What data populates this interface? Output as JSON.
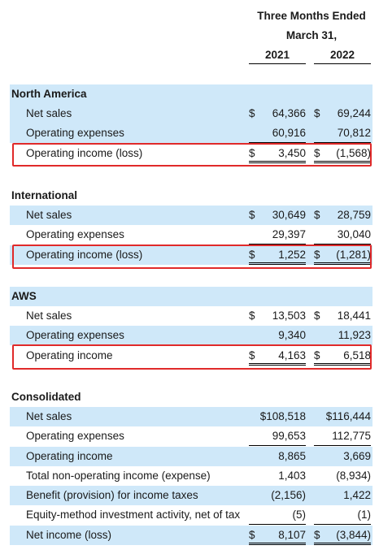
{
  "header": {
    "title_line1": "Three Months Ended",
    "title_line2": "March 31,",
    "years": [
      "2021",
      "2022"
    ]
  },
  "sections": {
    "north_america": {
      "title": "North America",
      "rows": [
        {
          "label": "Net sales",
          "cur1": "$",
          "v1": "64,366",
          "cur2": "$",
          "v2": "69,244"
        },
        {
          "label": "Operating expenses",
          "cur1": "",
          "v1": "60,916",
          "cur2": "",
          "v2": "70,812"
        },
        {
          "label": "Operating income (loss)",
          "cur1": "$",
          "v1": "3,450",
          "cur2": "$",
          "v2": "(1,568)"
        }
      ]
    },
    "international": {
      "title": "International",
      "rows": [
        {
          "label": "Net sales",
          "cur1": "$",
          "v1": "30,649",
          "cur2": "$",
          "v2": "28,759"
        },
        {
          "label": "Operating expenses",
          "cur1": "",
          "v1": "29,397",
          "cur2": "",
          "v2": "30,040"
        },
        {
          "label": "Operating income (loss)",
          "cur1": "$",
          "v1": "1,252",
          "cur2": "$",
          "v2": "(1,281)"
        }
      ]
    },
    "aws": {
      "title": "AWS",
      "rows": [
        {
          "label": "Net sales",
          "cur1": "$",
          "v1": "13,503",
          "cur2": "$",
          "v2": "18,441"
        },
        {
          "label": "Operating expenses",
          "cur1": "",
          "v1": "9,340",
          "cur2": "",
          "v2": "11,923"
        },
        {
          "label": "Operating income",
          "cur1": "$",
          "v1": "4,163",
          "cur2": "$",
          "v2": "6,518"
        }
      ]
    },
    "consolidated": {
      "title": "Consolidated",
      "rows": [
        {
          "label": "Net sales",
          "cur1": "",
          "v1": "$108,518",
          "cur2": "",
          "v2": "$116,444"
        },
        {
          "label": "Operating expenses",
          "cur1": "",
          "v1": "99,653",
          "cur2": "",
          "v2": "112,775"
        },
        {
          "label": "Operating income",
          "cur1": "",
          "v1": "8,865",
          "cur2": "",
          "v2": "3,669"
        },
        {
          "label": "Total non-operating income (expense)",
          "cur1": "",
          "v1": "1,403",
          "cur2": "",
          "v2": "(8,934)"
        },
        {
          "label": "Benefit (provision) for income taxes",
          "cur1": "",
          "v1": "(2,156)",
          "cur2": "",
          "v2": "1,422"
        },
        {
          "label": "Equity-method investment activity, net of tax",
          "cur1": "",
          "v1": "(5)",
          "cur2": "",
          "v2": "(1)"
        },
        {
          "label": "Net income (loss)",
          "cur1": "$",
          "v1": "8,107",
          "cur2": "$",
          "v2": "(3,844)"
        }
      ]
    }
  },
  "highlight_color": "#e02a2a",
  "shade_color": "#cfe8f9"
}
